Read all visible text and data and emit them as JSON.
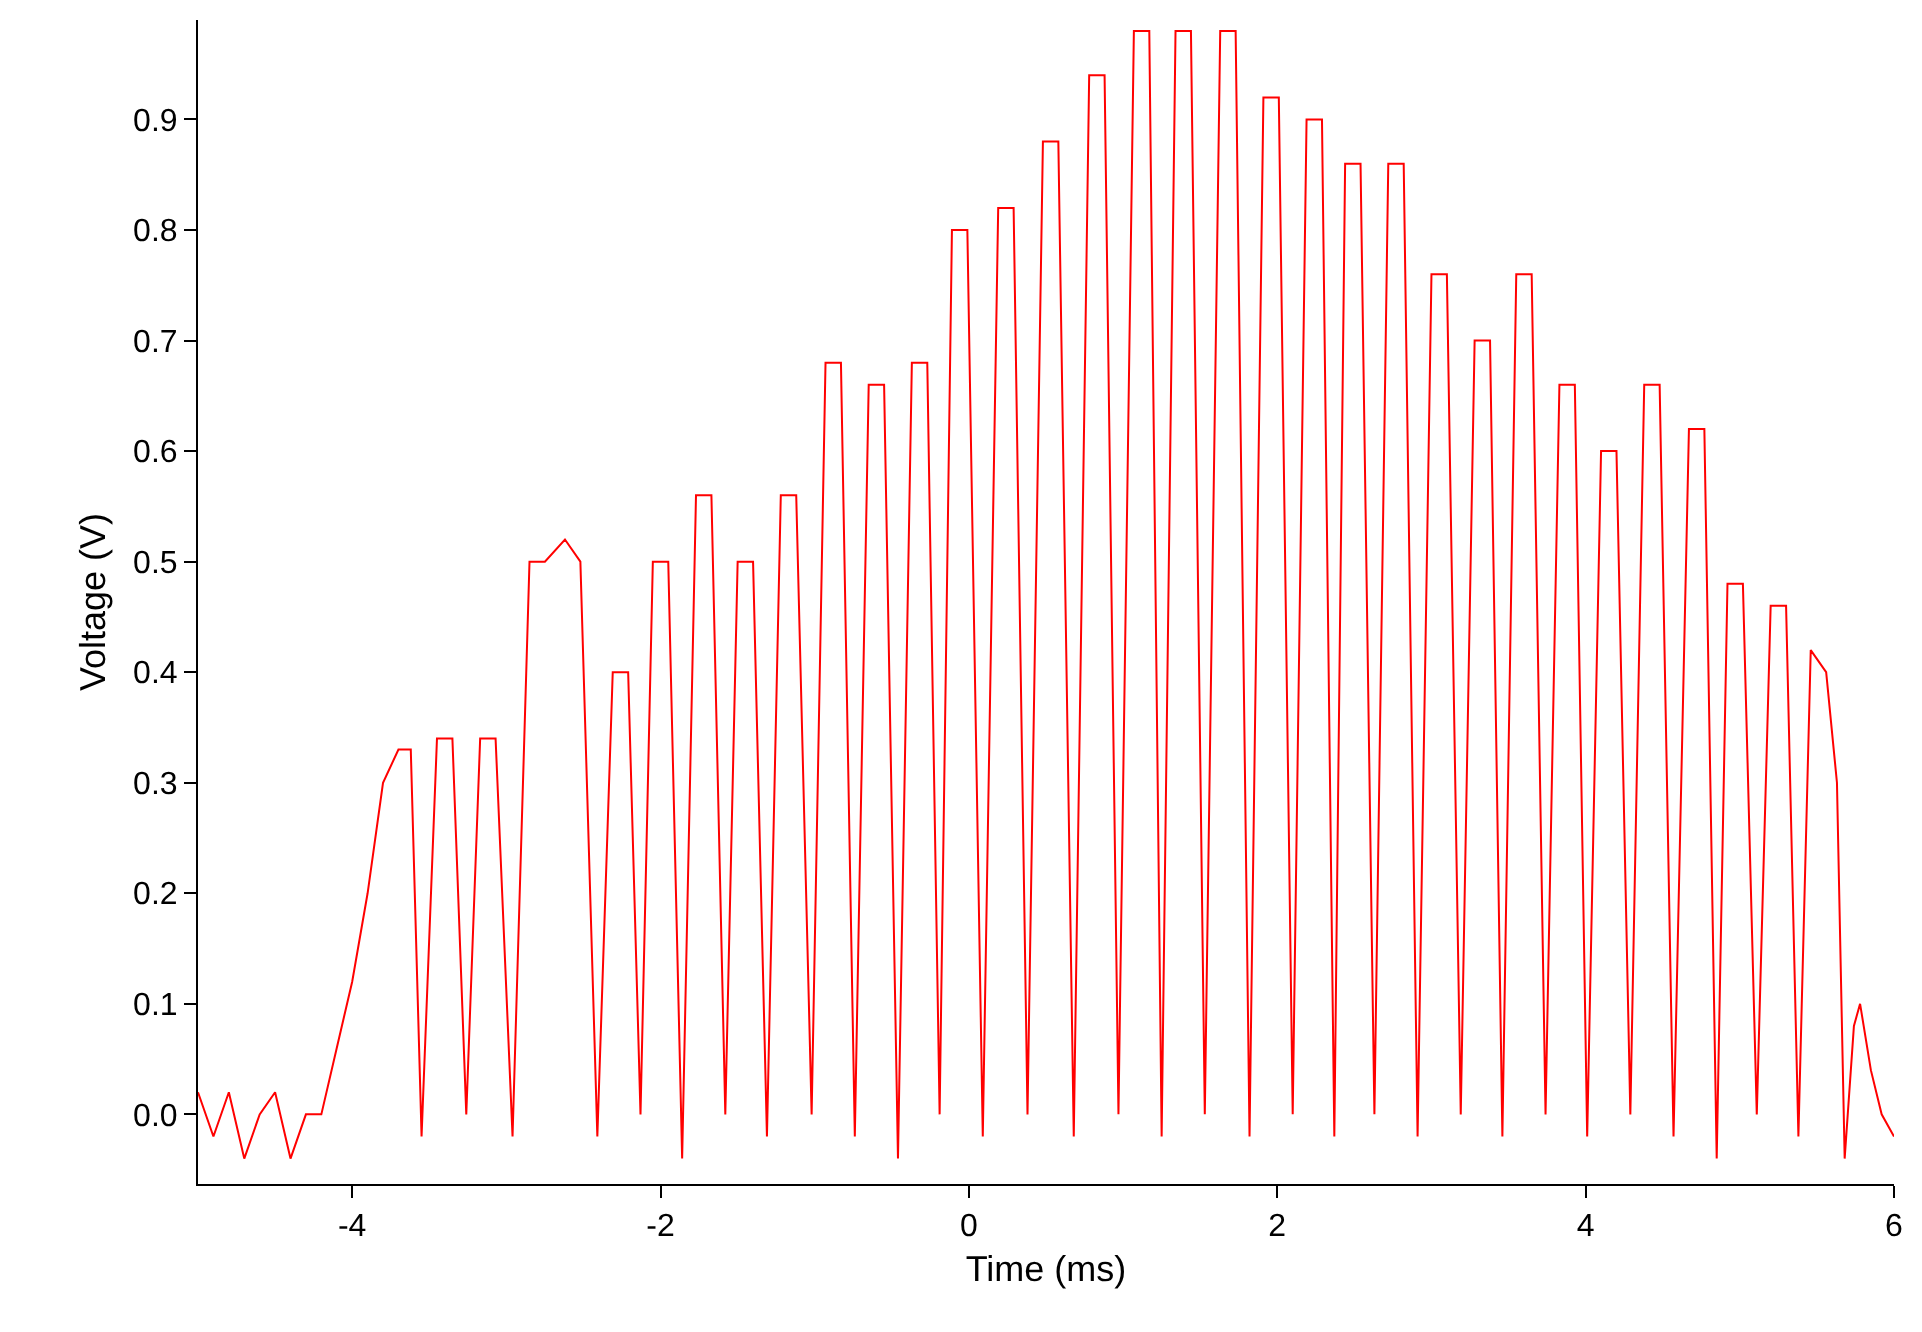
{
  "chart_data": {
    "type": "line",
    "xlabel": "Time (ms)",
    "ylabel": "Voltage (V)",
    "xlim": [
      -5,
      6
    ],
    "xticks": [
      -4,
      -2,
      0,
      2,
      4,
      6
    ],
    "ylim": [
      -0.063,
      0.99
    ],
    "yticks": [
      {
        "value": 0,
        "label": "0.0"
      },
      0.1,
      0.2,
      0.3,
      0.4,
      0.5,
      0.6,
      0.7,
      0.8,
      0.9
    ],
    "marker": "none",
    "line_style": "solid",
    "series": [
      {
        "color": "#ff0000",
        "x": [
          -5,
          -4.9,
          -4.8,
          -4.7,
          -4.6,
          -4.5,
          -4.4,
          -4.3,
          -4.2,
          -4.1,
          -4.0,
          -3.9,
          -3.8,
          -3.7,
          -3.62,
          -3.55,
          -3.45,
          -3.35,
          -3.26,
          -3.17,
          -3.07,
          -2.96,
          -2.85,
          -2.75,
          -2.62,
          -2.52,
          -2.41,
          -2.31,
          -2.21,
          -2.13,
          -2.05,
          -1.95,
          -1.86,
          -1.77,
          -1.67,
          -1.58,
          -1.5,
          -1.4,
          -1.31,
          -1.22,
          -1.12,
          -1.02,
          -0.93,
          -0.83,
          -0.74,
          -0.65,
          -0.55,
          -0.46,
          -0.37,
          -0.27,
          -0.19,
          -0.11,
          -0.01,
          0.09,
          0.19,
          0.29,
          0.38,
          0.48,
          0.58,
          0.68,
          0.78,
          0.88,
          0.97,
          1.07,
          1.17,
          1.25,
          1.34,
          1.44,
          1.53,
          1.63,
          1.73,
          1.82,
          1.91,
          2.01,
          2.1,
          2.19,
          2.29,
          2.37,
          2.44,
          2.54,
          2.63,
          2.72,
          2.82,
          2.91,
          3.0,
          3.1,
          3.19,
          3.28,
          3.38,
          3.46,
          3.55,
          3.65,
          3.74,
          3.83,
          3.93,
          4.01,
          4.1,
          4.2,
          4.29,
          4.38,
          4.48,
          4.57,
          4.67,
          4.77,
          4.85,
          4.92,
          5.02,
          5.11,
          5.2,
          5.3,
          5.38,
          5.46,
          5.56,
          5.63,
          5.68,
          5.74,
          5.78,
          5.85,
          5.92,
          6.0
        ],
        "values": [
          0.02,
          -0.02,
          0.02,
          -0.04,
          0.0,
          0.02,
          -0.04,
          0.0,
          0.0,
          0.06,
          0.12,
          0.2,
          0.3,
          0.33,
          0.33,
          -0.02,
          0.34,
          0.34,
          0.0,
          0.34,
          0.34,
          -0.02,
          0.5,
          0.5,
          0.52,
          0.5,
          -0.02,
          0.4,
          0.4,
          0.0,
          0.5,
          0.5,
          -0.04,
          0.56,
          0.56,
          0.0,
          0.5,
          0.5,
          -0.02,
          0.56,
          0.56,
          0.0,
          0.68,
          0.68,
          -0.02,
          0.66,
          0.66,
          -0.04,
          0.68,
          0.68,
          0.0,
          0.8,
          0.8,
          -0.02,
          0.82,
          0.82,
          0.0,
          0.88,
          0.88,
          -0.02,
          0.94,
          0.94,
          0.0,
          0.98,
          0.98,
          -0.02,
          0.98,
          0.98,
          0.0,
          0.98,
          0.98,
          -0.02,
          0.92,
          0.92,
          0.0,
          0.9,
          0.9,
          -0.02,
          0.86,
          0.86,
          0.0,
          0.86,
          0.86,
          -0.02,
          0.76,
          0.76,
          0.0,
          0.7,
          0.7,
          -0.02,
          0.76,
          0.76,
          0.0,
          0.66,
          0.66,
          -0.02,
          0.6,
          0.6,
          0.0,
          0.66,
          0.66,
          -0.02,
          0.62,
          0.62,
          -0.04,
          0.48,
          0.48,
          0.0,
          0.46,
          0.46,
          -0.02,
          0.42,
          0.4,
          0.3,
          -0.04,
          0.08,
          0.1,
          0.04,
          0.0,
          -0.02
        ]
      }
    ]
  }
}
